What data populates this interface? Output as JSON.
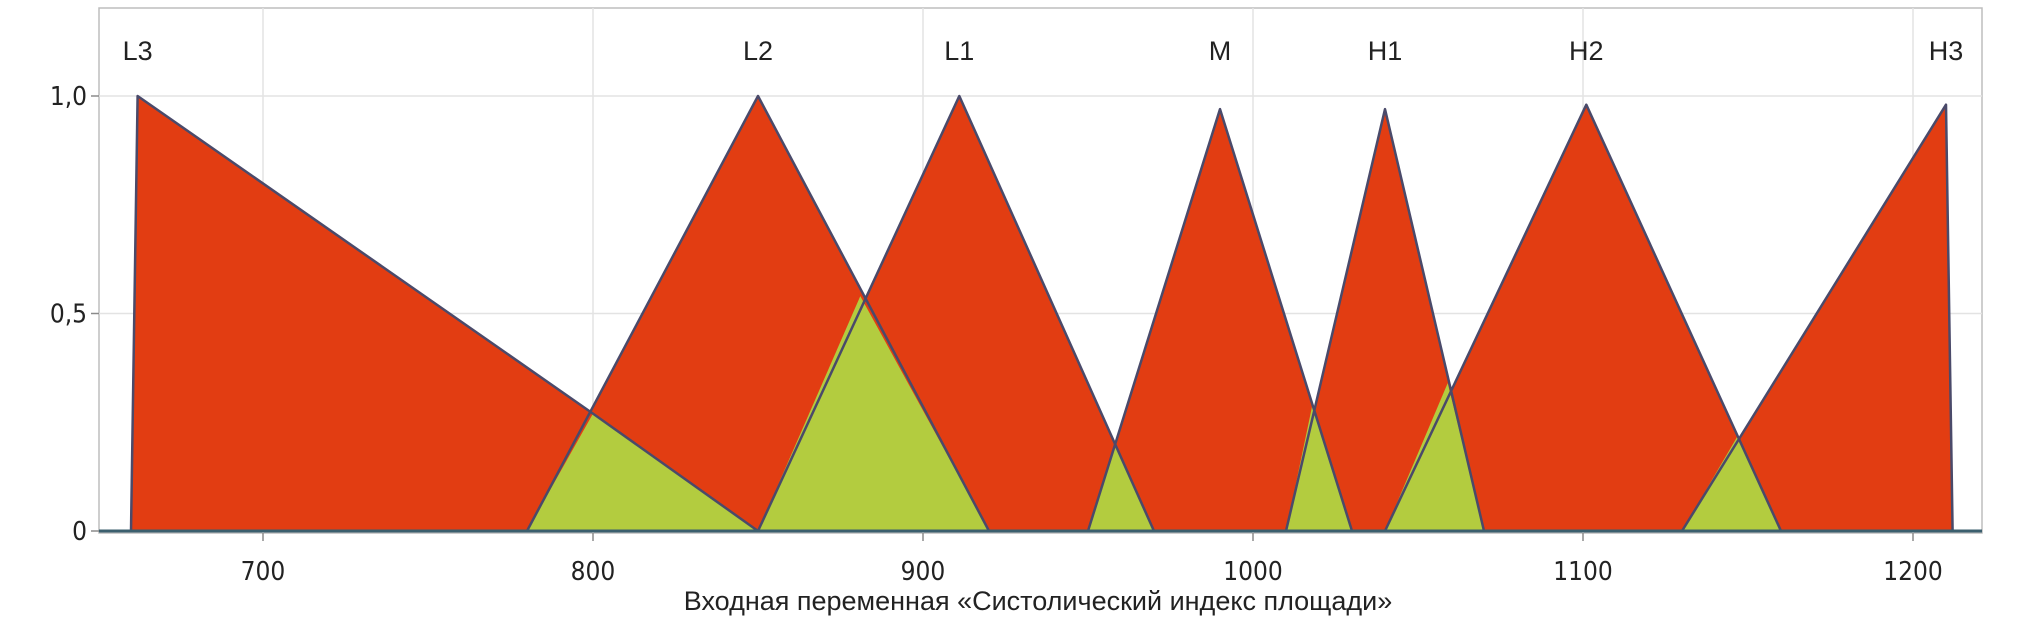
{
  "chart_data": {
    "type": "area",
    "title": "",
    "xlabel": "Входная переменная «Систолический индекс площади»",
    "ylabel": "",
    "xlim": [
      652,
      1222
    ],
    "ylim": [
      0,
      1.0
    ],
    "x_ticks": [
      700,
      800,
      900,
      1000,
      1100,
      1200
    ],
    "x_tick_labels": [
      "700",
      "800",
      "900",
      "1000",
      "1100",
      "1200"
    ],
    "y_ticks": [
      0,
      0.5,
      1.0
    ],
    "y_tick_labels": [
      "0",
      "0,5",
      "1,0"
    ],
    "grid": true,
    "colors": {
      "membership_fill": "#e23d12",
      "overlap_fill": "#b3cc3f",
      "edge": "#4a4a6a",
      "grid": "#e3e3e3"
    },
    "terms": [
      {
        "name": "L3",
        "label": "L3",
        "points": [
          [
            660,
            0
          ],
          [
            662,
            1.0
          ],
          [
            800,
            0.27
          ],
          [
            850,
            0
          ]
        ]
      },
      {
        "name": "L2",
        "label": "L2",
        "points": [
          [
            780,
            0
          ],
          [
            850,
            1.0
          ],
          [
            920,
            0
          ]
        ]
      },
      {
        "name": "L1",
        "label": "L1",
        "points": [
          [
            850,
            0
          ],
          [
            911,
            1.0
          ],
          [
            970,
            0
          ]
        ]
      },
      {
        "name": "M",
        "label": "M",
        "points": [
          [
            950,
            0
          ],
          [
            990,
            0.97
          ],
          [
            1030,
            0
          ]
        ]
      },
      {
        "name": "H1",
        "label": "H1",
        "points": [
          [
            1010,
            0
          ],
          [
            1040,
            0.97
          ],
          [
            1070,
            0
          ]
        ]
      },
      {
        "name": "H2",
        "label": "H2",
        "points": [
          [
            1040,
            0
          ],
          [
            1101,
            0.98
          ],
          [
            1160,
            0
          ]
        ]
      },
      {
        "name": "H3",
        "label": "H3",
        "points": [
          [
            1130,
            0
          ],
          [
            1210,
            0.98
          ],
          [
            1212,
            0
          ]
        ]
      }
    ],
    "overlaps": [
      {
        "points": [
          [
            780,
            0
          ],
          [
            800,
            0.27
          ],
          [
            850,
            0
          ]
        ]
      },
      {
        "points": [
          [
            850,
            0
          ],
          [
            881,
            0.54
          ],
          [
            920,
            0
          ]
        ]
      },
      {
        "points": [
          [
            950,
            0
          ],
          [
            958,
            0.2
          ],
          [
            970,
            0
          ]
        ]
      },
      {
        "points": [
          [
            1010,
            0
          ],
          [
            1018,
            0.29
          ],
          [
            1030,
            0
          ]
        ]
      },
      {
        "points": [
          [
            1040,
            0
          ],
          [
            1059,
            0.34
          ],
          [
            1070,
            0
          ]
        ]
      },
      {
        "points": [
          [
            1130,
            0
          ],
          [
            1147,
            0.22
          ],
          [
            1160,
            0
          ]
        ]
      }
    ]
  }
}
